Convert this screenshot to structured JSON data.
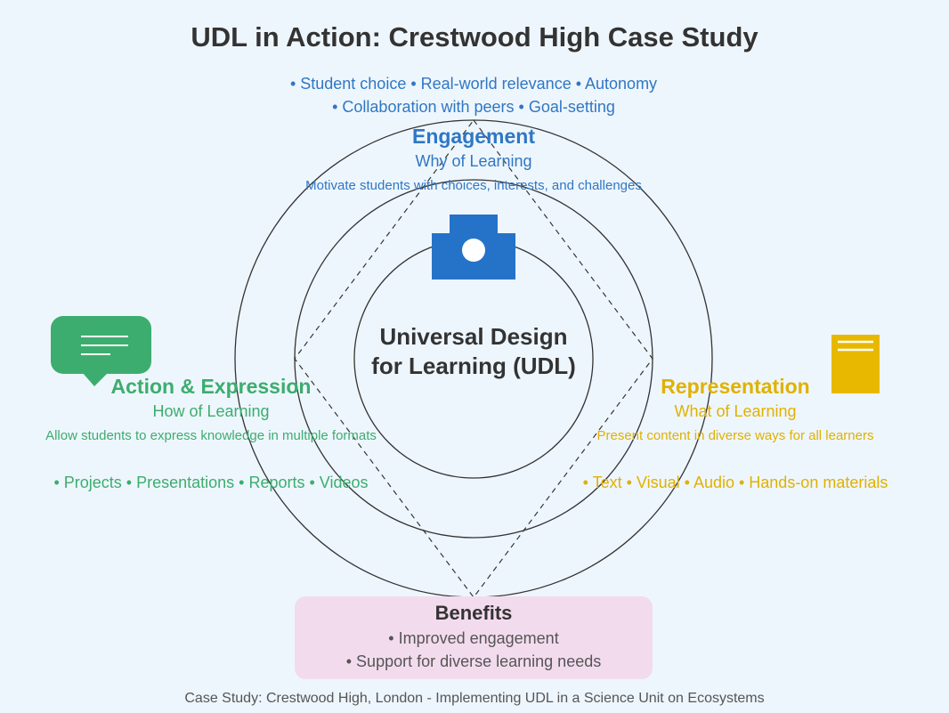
{
  "title": "UDL in Action: Crestwood High Case Study",
  "center": {
    "line1": "Universal Design",
    "line2": "for Learning (UDL)"
  },
  "engagement": {
    "list_line1": "• Student choice • Real-world relevance • Autonomy",
    "list_line2": "• Collaboration with peers • Goal-setting",
    "heading": "Engagement",
    "subheading": "Why of Learning",
    "description": "Motivate students with choices, interests, and challenges",
    "icon": "camera-icon",
    "color": "#2f77c3"
  },
  "action": {
    "heading": "Action & Expression",
    "subheading": "How of Learning",
    "description": "Allow students to express knowledge in multiple formats",
    "list": "• Projects • Presentations • Reports • Videos",
    "icon": "speech-bubble-icon",
    "color": "#3cad6e"
  },
  "representation": {
    "heading": "Representation",
    "subheading": "What of Learning",
    "description": "Present content in diverse ways for all learners",
    "list": "• Text • Visual • Audio • Hands-on materials",
    "icon": "book-icon",
    "color": "#e0b100"
  },
  "benefits": {
    "heading": "Benefits",
    "items": [
      "• Improved engagement",
      "• Support for diverse learning needs"
    ]
  },
  "footer": "Case Study: Crestwood High, London - Implementing UDL in a Science Unit on Ecosystems"
}
